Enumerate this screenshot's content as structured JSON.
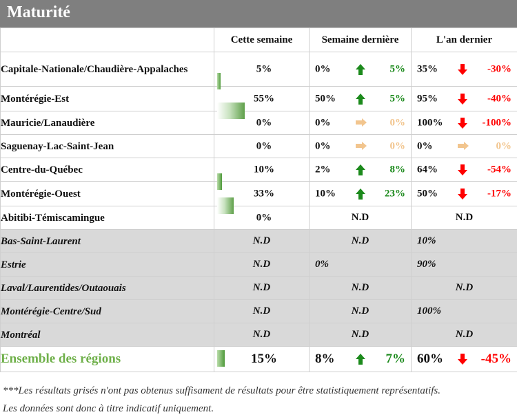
{
  "title": "Maturité",
  "columns": [
    "Cette semaine",
    "Semaine dernière",
    "L'an dernier"
  ],
  "colors": {
    "up": "#1c8a1c",
    "down": "#ff0000",
    "flat": "#f2c58e"
  },
  "rows": [
    {
      "name": "Capitale-Nationale/Chaudière-Appalaches",
      "current": "5%",
      "bar": 0.05,
      "prev": {
        "value": "0%",
        "trend": "up",
        "diff": "5%"
      },
      "year": {
        "value": "35%",
        "trend": "down",
        "diff": "-30%"
      }
    },
    {
      "name": "Montérégie-Est",
      "current": "55%",
      "bar": 0.55,
      "prev": {
        "value": "50%",
        "trend": "up",
        "diff": "5%"
      },
      "year": {
        "value": "95%",
        "trend": "down",
        "diff": "-40%"
      }
    },
    {
      "name": "Mauricie/Lanaudière",
      "current": "0%",
      "bar": 0,
      "prev": {
        "value": "0%",
        "trend": "flat",
        "diff": "0%"
      },
      "year": {
        "value": "100%",
        "trend": "down",
        "diff": "-100%"
      }
    },
    {
      "name": "Saguenay-Lac-Saint-Jean",
      "current": "0%",
      "bar": 0,
      "prev": {
        "value": "0%",
        "trend": "flat",
        "diff": "0%"
      },
      "year": {
        "value": "0%",
        "trend": "flat",
        "diff": "0%"
      }
    },
    {
      "name": "Centre-du-Québec",
      "current": "10%",
      "bar": 0.1,
      "prev": {
        "value": "2%",
        "trend": "up",
        "diff": "8%"
      },
      "year": {
        "value": "64%",
        "trend": "down",
        "diff": "-54%"
      }
    },
    {
      "name": "Montérégie-Ouest",
      "current": "33%",
      "bar": 0.33,
      "prev": {
        "value": "10%",
        "trend": "up",
        "diff": "23%"
      },
      "year": {
        "value": "50%",
        "trend": "down",
        "diff": "-17%"
      }
    },
    {
      "name": "Abitibi-Témiscamingue",
      "current": "0%",
      "prev_nd": "N.D",
      "year_nd": "N.D"
    }
  ],
  "gray_rows": [
    {
      "name": "Bas-Saint-Laurent",
      "current": "N.D",
      "prev": "N.D",
      "year": "10%"
    },
    {
      "name": "Estrie",
      "current": "N.D",
      "prev": "0%",
      "year": "90%"
    },
    {
      "name": "Laval/Laurentides/Outaouais",
      "current": "N.D",
      "prev": "N.D",
      "year": "N.D"
    },
    {
      "name": "Montérégie-Centre/Sud",
      "current": "N.D",
      "prev": "N.D",
      "year": "100%"
    },
    {
      "name": "Montréal",
      "current": "N.D",
      "prev": "N.D",
      "year": "N.D"
    }
  ],
  "total": {
    "name": "Ensemble des régions",
    "current": "15%",
    "bar": 0.15,
    "prev": {
      "value": "8%",
      "trend": "up",
      "diff": "7%"
    },
    "year": {
      "value": "60%",
      "trend": "down",
      "diff": "-45%"
    }
  },
  "footnote": [
    "***Les résultats grisés n'ont pas obtenus suffisament de résultats pour être statistiquement représentatifs.",
    "Les données sont donc à titre indicatif uniquement."
  ]
}
